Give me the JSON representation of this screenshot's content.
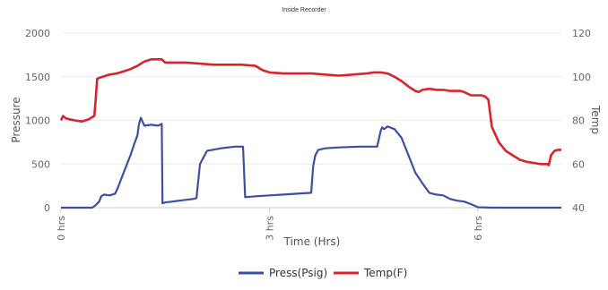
{
  "chart_data": {
    "type": "line",
    "title": "Inside Recorder",
    "xlabel": "Time (Hrs)",
    "ylabel": "Pressure",
    "y2label": "Temp",
    "xlim": [
      0,
      7.2
    ],
    "ylim": [
      0,
      2000
    ],
    "y2lim": [
      40,
      120
    ],
    "grid": true,
    "legend_position": "bottom",
    "x_ticks": [
      {
        "value": 0,
        "label": "0 hrs"
      },
      {
        "value": 3,
        "label": "3 hrs"
      },
      {
        "value": 6,
        "label": "6 hrs"
      }
    ],
    "y_ticks": [
      {
        "value": 0,
        "label": "0"
      },
      {
        "value": 500,
        "label": "500"
      },
      {
        "value": 1000,
        "label": "1000"
      },
      {
        "value": 1500,
        "label": "1500"
      },
      {
        "value": 2000,
        "label": "2000"
      }
    ],
    "y2_ticks": [
      {
        "value": 40,
        "label": "40"
      },
      {
        "value": 60,
        "label": "60"
      },
      {
        "value": 80,
        "label": "80"
      },
      {
        "value": 100,
        "label": "100"
      },
      {
        "value": 120,
        "label": "120"
      }
    ],
    "series": [
      {
        "name": "Press(Psig)",
        "axis": "left",
        "color": "#3d4fa0",
        "x": [
          0,
          0.45,
          0.5,
          0.55,
          0.58,
          0.62,
          0.7,
          0.78,
          0.82,
          0.9,
          1.0,
          1.05,
          1.1,
          1.12,
          1.15,
          1.2,
          1.3,
          1.4,
          1.45,
          1.46,
          1.5,
          1.7,
          1.9,
          1.95,
          2.0,
          2.1,
          2.3,
          2.5,
          2.6,
          2.62,
          2.65,
          2.8,
          3.0,
          3.2,
          3.4,
          3.6,
          3.63,
          3.66,
          3.7,
          3.8,
          4.0,
          4.3,
          4.55,
          4.6,
          4.62,
          4.65,
          4.7,
          4.8,
          4.9,
          5.0,
          5.1,
          5.2,
          5.3,
          5.4,
          5.5,
          5.6,
          5.7,
          5.8,
          5.9,
          6.0,
          6.2,
          6.5,
          7.2
        ],
        "y": [
          0,
          0,
          30,
          70,
          130,
          150,
          140,
          160,
          230,
          400,
          600,
          720,
          830,
          950,
          1030,
          940,
          950,
          940,
          960,
          50,
          60,
          80,
          100,
          110,
          500,
          650,
          680,
          700,
          700,
          700,
          120,
          130,
          140,
          150,
          160,
          170,
          480,
          600,
          660,
          680,
          690,
          700,
          700,
          880,
          920,
          900,
          930,
          900,
          800,
          600,
          400,
          280,
          170,
          150,
          140,
          100,
          80,
          70,
          40,
          5,
          0,
          0,
          0
        ]
      },
      {
        "name": "Temp(F)",
        "axis": "right",
        "color": "#d9232d",
        "x": [
          0,
          0.03,
          0.07,
          0.12,
          0.2,
          0.3,
          0.4,
          0.45,
          0.48,
          0.5,
          0.52,
          0.55,
          0.6,
          0.7,
          0.8,
          0.9,
          1.0,
          1.1,
          1.15,
          1.2,
          1.3,
          1.45,
          1.5,
          1.6,
          1.8,
          2.0,
          2.2,
          2.4,
          2.6,
          2.8,
          2.9,
          3.0,
          3.2,
          3.4,
          3.6,
          3.8,
          4.0,
          4.2,
          4.4,
          4.5,
          4.6,
          4.7,
          4.8,
          4.9,
          5.0,
          5.1,
          5.15,
          5.2,
          5.3,
          5.4,
          5.5,
          5.6,
          5.7,
          5.75,
          5.8,
          5.9,
          6.0,
          6.05,
          6.1,
          6.15,
          6.2,
          6.3,
          6.4,
          6.5,
          6.6,
          6.7,
          6.8,
          6.9,
          7.0,
          7.02,
          7.05,
          7.1,
          7.15,
          7.2
        ],
        "y": [
          80,
          82,
          81,
          80.5,
          80,
          79.5,
          80.5,
          81.5,
          82,
          90,
          99,
          99.5,
          100,
          101,
          101.5,
          102.5,
          103.5,
          105,
          106,
          107,
          108,
          108,
          106.5,
          106.5,
          106.5,
          106,
          105.5,
          105.5,
          105.5,
          105,
          103,
          102,
          101.5,
          101.5,
          101.5,
          101,
          100.5,
          101,
          101.5,
          102,
          102,
          101.5,
          100,
          98,
          95.5,
          93.5,
          93,
          94,
          94.5,
          94,
          94,
          93.5,
          93.5,
          93.5,
          93,
          91.5,
          91.5,
          91.5,
          91,
          89.5,
          77,
          70,
          66,
          64,
          62,
          61,
          60.5,
          60,
          60,
          59.5,
          64,
          66,
          66.5,
          66.5
        ]
      }
    ]
  }
}
